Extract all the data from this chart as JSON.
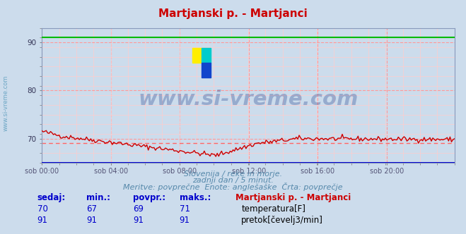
{
  "title": "Martjanski p. - Martjanci",
  "bg_color": "#ccdcec",
  "plot_bg_color": "#ccdcec",
  "grid_color_major": "#ff9999",
  "grid_color_minor": "#ffcccc",
  "ylim": [
    65,
    93
  ],
  "yticks": [
    70,
    80,
    90
  ],
  "xlabel_ticks": [
    "sob 00:00",
    "sob 04:00",
    "sob 08:00",
    "sob 12:00",
    "sob 16:00",
    "sob 20:00"
  ],
  "x_tick_positions": [
    0,
    48,
    96,
    144,
    192,
    240
  ],
  "total_points": 288,
  "temp_avg": 69,
  "temp_min": 67,
  "temp_max": 71,
  "temp_current": 70,
  "flow_avg": 91,
  "flow_min": 91,
  "flow_max": 91,
  "flow_current": 91,
  "temp_color": "#cc0000",
  "flow_color": "#00bb00",
  "avg_line_color": "#ff6666",
  "blue_line_color": "#0000cc",
  "subtitle_color": "#5588aa",
  "header_color": "#0000cc",
  "value_color": "#0000cc",
  "title_color": "#cc0000",
  "legend_title_color": "#cc0000",
  "label_color": "#000000",
  "left_text_color": "#5599bb",
  "subtitle1": "Slovenija / reke in morje.",
  "subtitle2": "zadnji dan / 5 minut.",
  "subtitle3": "Meritve: povprečne  Enote: anglešaške  Črta: povprečje",
  "legend_title": "Martjanski p. - Martjanci",
  "label_temp": "temperatura[F]",
  "label_flow": "pretok[čevelj3/min]",
  "col_sedaj": "sedaj:",
  "col_min": "min.:",
  "col_povpr": "povpr.:",
  "col_maks": "maks.:"
}
